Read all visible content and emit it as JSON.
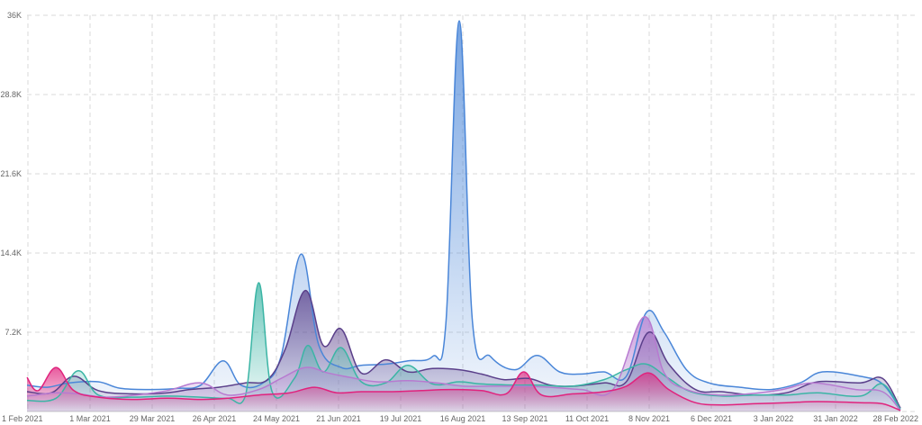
{
  "chart_data": {
    "type": "area",
    "title": "",
    "xlabel": "",
    "ylabel": "",
    "ylim": [
      0,
      36000
    ],
    "grid": true,
    "legend": "none",
    "y_ticks": [
      {
        "value": 7200,
        "label": "7.2K"
      },
      {
        "value": 14400,
        "label": "14.4K"
      },
      {
        "value": 21600,
        "label": "21.6K"
      },
      {
        "value": 28800,
        "label": "28.8K"
      },
      {
        "value": 36000,
        "label": "36K"
      }
    ],
    "x_ticks": [
      "1 Feb 2021",
      "1 Mar 2021",
      "29 Mar 2021",
      "26 Apr 2021",
      "24 May 2021",
      "21 Jun 2021",
      "19 Jul 2021",
      "16 Aug 2021",
      "13 Sep 2021",
      "11 Oct 2021",
      "8 Nov 2021",
      "6 Dec 2021",
      "3 Jan 2022",
      "31 Jan 2022",
      "28 Feb 2022"
    ],
    "x_start": "2021-02-01",
    "x_end": "2022-02-28",
    "series": [
      {
        "color": "#4a86d8",
        "points": [
          [
            "2021-02-01",
            2400
          ],
          [
            "2021-02-10",
            2200
          ],
          [
            "2021-02-20",
            2600
          ],
          [
            "2021-03-05",
            2700
          ],
          [
            "2021-03-15",
            2100
          ],
          [
            "2021-03-29",
            2000
          ],
          [
            "2021-04-10",
            2100
          ],
          [
            "2021-04-20",
            2400
          ],
          [
            "2021-04-30",
            4600
          ],
          [
            "2021-05-08",
            2400
          ],
          [
            "2021-05-18",
            2600
          ],
          [
            "2021-05-26",
            5000
          ],
          [
            "2021-06-04",
            14300
          ],
          [
            "2021-06-12",
            6000
          ],
          [
            "2021-06-22",
            4000
          ],
          [
            "2021-07-01",
            4200
          ],
          [
            "2021-07-12",
            4300
          ],
          [
            "2021-07-22",
            4600
          ],
          [
            "2021-08-02",
            5000
          ],
          [
            "2021-08-08",
            8000
          ],
          [
            "2021-08-14",
            35500
          ],
          [
            "2021-08-20",
            8000
          ],
          [
            "2021-08-28",
            5000
          ],
          [
            "2021-09-08",
            3800
          ],
          [
            "2021-09-18",
            5100
          ],
          [
            "2021-09-28",
            3600
          ],
          [
            "2021-10-08",
            3400
          ],
          [
            "2021-10-18",
            3600
          ],
          [
            "2021-10-28",
            3200
          ],
          [
            "2021-11-06",
            9000
          ],
          [
            "2021-11-14",
            7200
          ],
          [
            "2021-11-24",
            3800
          ],
          [
            "2021-12-04",
            2600
          ],
          [
            "2021-12-18",
            2200
          ],
          [
            "2022-01-01",
            2000
          ],
          [
            "2022-01-14",
            2600
          ],
          [
            "2022-01-24",
            3600
          ],
          [
            "2022-02-10",
            3200
          ],
          [
            "2022-02-20",
            2500
          ],
          [
            "2022-02-28",
            200
          ]
        ]
      },
      {
        "color": "#5a3f8a",
        "points": [
          [
            "2021-02-01",
            1800
          ],
          [
            "2021-02-12",
            1700
          ],
          [
            "2021-02-22",
            3200
          ],
          [
            "2021-03-05",
            1900
          ],
          [
            "2021-03-20",
            1600
          ],
          [
            "2021-04-05",
            1700
          ],
          [
            "2021-04-15",
            2000
          ],
          [
            "2021-04-28",
            2200
          ],
          [
            "2021-05-10",
            2600
          ],
          [
            "2021-05-20",
            2900
          ],
          [
            "2021-05-28",
            5700
          ],
          [
            "2021-06-06",
            11000
          ],
          [
            "2021-06-14",
            6000
          ],
          [
            "2021-06-22",
            7500
          ],
          [
            "2021-07-01",
            3500
          ],
          [
            "2021-07-12",
            4700
          ],
          [
            "2021-07-22",
            3600
          ],
          [
            "2021-08-02",
            3900
          ],
          [
            "2021-08-14",
            3800
          ],
          [
            "2021-08-24",
            3400
          ],
          [
            "2021-09-03",
            2900
          ],
          [
            "2021-09-14",
            3000
          ],
          [
            "2021-09-24",
            2400
          ],
          [
            "2021-10-04",
            2300
          ],
          [
            "2021-10-18",
            2600
          ],
          [
            "2021-10-28",
            2700
          ],
          [
            "2021-11-07",
            7200
          ],
          [
            "2021-11-16",
            4300
          ],
          [
            "2021-11-28",
            2000
          ],
          [
            "2021-12-10",
            1800
          ],
          [
            "2021-12-24",
            1500
          ],
          [
            "2022-01-08",
            1700
          ],
          [
            "2022-01-22",
            2700
          ],
          [
            "2022-02-10",
            2600
          ],
          [
            "2022-02-20",
            3000
          ],
          [
            "2022-02-28",
            300
          ]
        ]
      },
      {
        "color": "#3bb5a5",
        "points": [
          [
            "2021-02-01",
            1000
          ],
          [
            "2021-02-14",
            1200
          ],
          [
            "2021-02-24",
            3700
          ],
          [
            "2021-03-05",
            1500
          ],
          [
            "2021-03-20",
            1300
          ],
          [
            "2021-04-05",
            1400
          ],
          [
            "2021-04-20",
            1300
          ],
          [
            "2021-05-02",
            1200
          ],
          [
            "2021-05-10",
            1400
          ],
          [
            "2021-05-16",
            11700
          ],
          [
            "2021-05-22",
            1800
          ],
          [
            "2021-06-01",
            3000
          ],
          [
            "2021-06-07",
            6000
          ],
          [
            "2021-06-14",
            3600
          ],
          [
            "2021-06-22",
            5800
          ],
          [
            "2021-07-01",
            2700
          ],
          [
            "2021-07-12",
            2600
          ],
          [
            "2021-07-22",
            4200
          ],
          [
            "2021-08-02",
            2500
          ],
          [
            "2021-08-14",
            2700
          ],
          [
            "2021-08-24",
            2500
          ],
          [
            "2021-09-08",
            2400
          ],
          [
            "2021-09-20",
            2400
          ],
          [
            "2021-10-04",
            2300
          ],
          [
            "2021-10-18",
            2900
          ],
          [
            "2021-10-28",
            3800
          ],
          [
            "2021-11-06",
            4300
          ],
          [
            "2021-11-16",
            3000
          ],
          [
            "2021-11-26",
            1800
          ],
          [
            "2021-12-10",
            1400
          ],
          [
            "2021-12-24",
            1500
          ],
          [
            "2022-01-08",
            1500
          ],
          [
            "2022-01-22",
            1700
          ],
          [
            "2022-02-10",
            1400
          ],
          [
            "2022-02-20",
            2500
          ],
          [
            "2022-02-28",
            200
          ]
        ]
      },
      {
        "color": "#b77ad0",
        "points": [
          [
            "2021-02-01",
            1400
          ],
          [
            "2021-02-14",
            1700
          ],
          [
            "2021-02-24",
            1600
          ],
          [
            "2021-03-08",
            1300
          ],
          [
            "2021-03-22",
            1500
          ],
          [
            "2021-04-05",
            1900
          ],
          [
            "2021-04-20",
            2600
          ],
          [
            "2021-05-02",
            1500
          ],
          [
            "2021-05-16",
            2000
          ],
          [
            "2021-05-26",
            3000
          ],
          [
            "2021-06-06",
            4000
          ],
          [
            "2021-06-16",
            3500
          ],
          [
            "2021-06-26",
            3100
          ],
          [
            "2021-07-08",
            2700
          ],
          [
            "2021-07-22",
            2800
          ],
          [
            "2021-08-04",
            2600
          ],
          [
            "2021-08-16",
            2300
          ],
          [
            "2021-08-28",
            2300
          ],
          [
            "2021-09-10",
            2300
          ],
          [
            "2021-09-24",
            2200
          ],
          [
            "2021-10-08",
            2000
          ],
          [
            "2021-10-22",
            2000
          ],
          [
            "2021-11-05",
            8600
          ],
          [
            "2021-11-14",
            3500
          ],
          [
            "2021-11-24",
            2000
          ],
          [
            "2021-12-08",
            1500
          ],
          [
            "2021-12-22",
            1600
          ],
          [
            "2022-01-06",
            2000
          ],
          [
            "2022-01-20",
            2600
          ],
          [
            "2022-02-08",
            2000
          ],
          [
            "2022-02-20",
            1800
          ],
          [
            "2022-02-28",
            100
          ]
        ]
      },
      {
        "color": "#e0237d",
        "points": [
          [
            "2021-02-01",
            3100
          ],
          [
            "2021-02-06",
            1900
          ],
          [
            "2021-02-14",
            4000
          ],
          [
            "2021-02-22",
            1900
          ],
          [
            "2021-03-05",
            1300
          ],
          [
            "2021-03-20",
            1100
          ],
          [
            "2021-04-05",
            1200
          ],
          [
            "2021-04-20",
            1100
          ],
          [
            "2021-05-02",
            1200
          ],
          [
            "2021-05-16",
            1500
          ],
          [
            "2021-05-30",
            1700
          ],
          [
            "2021-06-10",
            2200
          ],
          [
            "2021-06-20",
            1700
          ],
          [
            "2021-07-01",
            1800
          ],
          [
            "2021-07-15",
            1800
          ],
          [
            "2021-07-28",
            1900
          ],
          [
            "2021-08-10",
            2000
          ],
          [
            "2021-08-24",
            1900
          ],
          [
            "2021-09-04",
            1600
          ],
          [
            "2021-09-12",
            3600
          ],
          [
            "2021-09-20",
            1500
          ],
          [
            "2021-10-04",
            1600
          ],
          [
            "2021-10-18",
            1800
          ],
          [
            "2021-10-28",
            2300
          ],
          [
            "2021-11-07",
            3500
          ],
          [
            "2021-11-16",
            2000
          ],
          [
            "2021-11-28",
            800
          ],
          [
            "2021-12-10",
            600
          ],
          [
            "2021-12-24",
            700
          ],
          [
            "2022-01-08",
            800
          ],
          [
            "2022-01-22",
            900
          ],
          [
            "2022-02-10",
            800
          ],
          [
            "2022-02-20",
            700
          ],
          [
            "2022-02-28",
            100
          ]
        ]
      }
    ]
  }
}
